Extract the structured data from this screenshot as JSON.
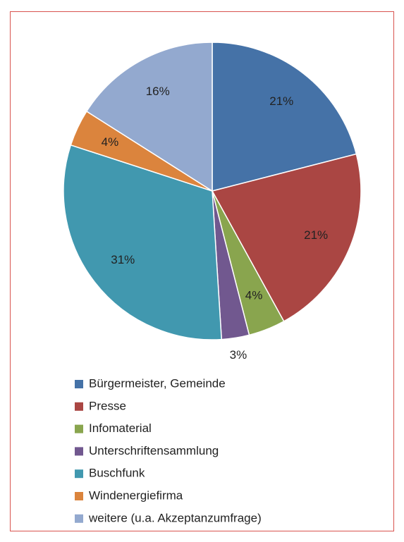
{
  "chart_data": {
    "type": "pie",
    "categories": [
      "Bürgermeister, Gemeinde",
      "Presse",
      "Infomaterial",
      "Unterschriftensammlung",
      "Buschfunk",
      "Windenergiefirma",
      "weitere (u.a. Akzeptanzumfrage)"
    ],
    "values": [
      21,
      21,
      4,
      3,
      31,
      4,
      16
    ],
    "value_labels": [
      "21%",
      "21%",
      "4%",
      "3%",
      "31%",
      "4%",
      "16%"
    ],
    "colors": [
      "#4572a7",
      "#aa4643",
      "#89a54e",
      "#71588f",
      "#4198af",
      "#db843d",
      "#93a9cf"
    ],
    "legend": "bottom"
  }
}
